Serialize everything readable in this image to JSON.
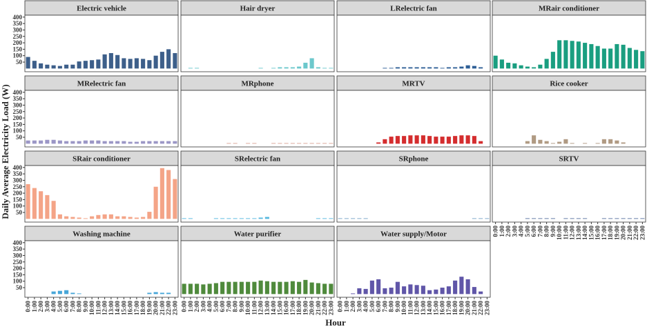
{
  "chart_data": {
    "type": "bar",
    "x_label": "Hour",
    "y_label": "Daily Average Electricity Load (W)",
    "categories": [
      "0:00",
      "1:00",
      "2:00",
      "3:00",
      "4:00",
      "5:00",
      "6:00",
      "7:00",
      "8:00",
      "9:00",
      "10:00",
      "11:00",
      "12:00",
      "13:00",
      "14:00",
      "15:00",
      "16:00",
      "17:00",
      "18:00",
      "19:00",
      "20:00",
      "21:00",
      "22:00",
      "23:00"
    ],
    "ylim": [
      -25,
      415
    ],
    "yticks": [
      50,
      100,
      150,
      200,
      250,
      300,
      350,
      400
    ],
    "series": [
      {
        "name": "Electric vehicle",
        "color": "#3d5f8a",
        "values": [
          90,
          60,
          40,
          30,
          25,
          20,
          30,
          30,
          55,
          60,
          65,
          70,
          110,
          120,
          105,
          80,
          75,
          80,
          75,
          65,
          100,
          130,
          150,
          120
        ]
      },
      {
        "name": "Hair dryer",
        "color": "#6cc8cc",
        "values": [
          null,
          5,
          5,
          null,
          null,
          null,
          null,
          null,
          null,
          null,
          null,
          null,
          5,
          null,
          5,
          10,
          10,
          10,
          15,
          45,
          80,
          10,
          5,
          5
        ]
      },
      {
        "name": "LRelectric fan",
        "color": "#2e5f96",
        "values": [
          null,
          null,
          null,
          null,
          null,
          null,
          null,
          5,
          5,
          10,
          10,
          10,
          10,
          10,
          10,
          10,
          5,
          10,
          10,
          15,
          25,
          20,
          10,
          null
        ]
      },
      {
        "name": "MRair conditioner",
        "color": "#1a9e80",
        "values": [
          100,
          70,
          45,
          40,
          25,
          15,
          10,
          30,
          75,
          130,
          220,
          220,
          215,
          210,
          200,
          190,
          175,
          155,
          155,
          190,
          185,
          160,
          145,
          135
        ]
      },
      {
        "name": "MRelectric fan",
        "color": "#9b96c6",
        "values": [
          25,
          25,
          25,
          30,
          30,
          25,
          20,
          20,
          20,
          25,
          25,
          25,
          20,
          20,
          20,
          20,
          15,
          15,
          20,
          20,
          20,
          20,
          20,
          20
        ]
      },
      {
        "name": "MRphone",
        "color": "#dba596",
        "values": [
          null,
          null,
          null,
          null,
          null,
          null,
          null,
          5,
          5,
          null,
          5,
          5,
          null,
          null,
          5,
          5,
          5,
          5,
          5,
          5,
          5,
          5,
          5,
          5
        ]
      },
      {
        "name": "MRTV",
        "color": "#d42d2e",
        "values": [
          null,
          null,
          null,
          null,
          null,
          null,
          10,
          35,
          55,
          60,
          60,
          65,
          65,
          65,
          60,
          55,
          55,
          55,
          60,
          65,
          65,
          60,
          20,
          null
        ]
      },
      {
        "name": "Rice cooker",
        "color": "#b09a83",
        "values": [
          null,
          null,
          null,
          null,
          null,
          20,
          65,
          30,
          20,
          5,
          15,
          35,
          5,
          null,
          5,
          null,
          5,
          35,
          35,
          25,
          10,
          null,
          null,
          null
        ]
      },
      {
        "name": "SRair conditioner",
        "color": "#f4a487",
        "values": [
          270,
          240,
          215,
          185,
          140,
          35,
          20,
          15,
          10,
          5,
          20,
          30,
          35,
          35,
          20,
          20,
          15,
          10,
          15,
          55,
          250,
          395,
          380,
          310
        ]
      },
      {
        "name": "SRelectric fan",
        "color": "#57b8de",
        "values": [
          5,
          5,
          null,
          null,
          null,
          5,
          5,
          5,
          5,
          5,
          5,
          5,
          10,
          15,
          null,
          null,
          null,
          null,
          null,
          null,
          null,
          5,
          5,
          5
        ]
      },
      {
        "name": "SRphone",
        "color": "#7aa6c8",
        "values": [
          5,
          5,
          5,
          5,
          5,
          null,
          null,
          null,
          null,
          null,
          null,
          null,
          null,
          null,
          null,
          null,
          null,
          null,
          null,
          null,
          null,
          5,
          5,
          5
        ]
      },
      {
        "name": "SRTV",
        "color": "#5b73a0",
        "values": [
          null,
          null,
          null,
          null,
          null,
          5,
          5,
          5,
          5,
          5,
          null,
          5,
          5,
          5,
          5,
          null,
          null,
          5,
          5,
          5,
          5,
          5,
          5,
          5
        ]
      },
      {
        "name": "Washing machine",
        "color": "#47a6d8",
        "values": [
          null,
          null,
          null,
          null,
          20,
          25,
          30,
          10,
          5,
          null,
          null,
          null,
          null,
          null,
          null,
          null,
          null,
          null,
          null,
          10,
          15,
          10,
          10,
          null
        ]
      },
      {
        "name": "Water purifier",
        "color": "#4f8a3c",
        "values": [
          80,
          80,
          80,
          75,
          80,
          85,
          95,
          95,
          95,
          95,
          95,
          95,
          105,
          100,
          95,
          95,
          95,
          100,
          95,
          110,
          90,
          85,
          80,
          80
        ]
      },
      {
        "name": "Water supply/Motor",
        "color": "#6056a8",
        "values": [
          null,
          null,
          5,
          45,
          40,
          105,
          115,
          45,
          50,
          95,
          60,
          75,
          70,
          65,
          30,
          35,
          50,
          60,
          105,
          135,
          115,
          55,
          20,
          null
        ]
      }
    ]
  }
}
